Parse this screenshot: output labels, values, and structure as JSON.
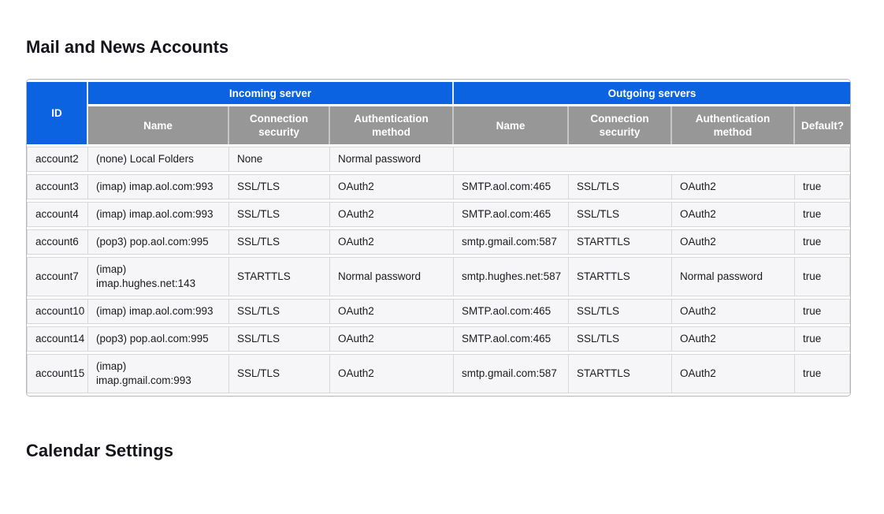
{
  "page": {
    "accounts_heading": "Mail and News Accounts",
    "calendar_heading": "Calendar Settings"
  },
  "colors": {
    "header_blue": "#0b63e1",
    "header_gray": "#979797",
    "row_bg": "#f6f6f8",
    "cell_border": "#d8d8da",
    "outer_border": "#b6b6b8",
    "heading_text": "#15141a"
  },
  "accounts_table": {
    "col_id": "ID",
    "group_incoming": "Incoming server",
    "group_outgoing": "Outgoing servers",
    "sub_headers": {
      "name": "Name",
      "connection_security": "Connection security",
      "authentication_method": "Authentication method",
      "default": "Default?"
    },
    "rows": [
      {
        "id": "account2",
        "in_name": "(none) Local Folders",
        "in_conn": "None",
        "in_auth": "Normal password",
        "out_name": null,
        "out_conn": null,
        "out_auth": null,
        "out_default": null
      },
      {
        "id": "account3",
        "in_name": "(imap) imap.aol.com:993",
        "in_conn": "SSL/TLS",
        "in_auth": "OAuth2",
        "out_name": "SMTP.aol.com:465",
        "out_conn": "SSL/TLS",
        "out_auth": "OAuth2",
        "out_default": "true"
      },
      {
        "id": "account4",
        "in_name": "(imap) imap.aol.com:993",
        "in_conn": "SSL/TLS",
        "in_auth": "OAuth2",
        "out_name": "SMTP.aol.com:465",
        "out_conn": "SSL/TLS",
        "out_auth": "OAuth2",
        "out_default": "true"
      },
      {
        "id": "account6",
        "in_name": "(pop3) pop.aol.com:995",
        "in_conn": "SSL/TLS",
        "in_auth": "OAuth2",
        "out_name": "smtp.gmail.com:587",
        "out_conn": "STARTTLS",
        "out_auth": "OAuth2",
        "out_default": "true"
      },
      {
        "id": "account7",
        "in_name": "(imap)\nimap.hughes.net:143",
        "in_conn": "STARTTLS",
        "in_auth": "Normal password",
        "out_name": "smtp.hughes.net:587",
        "out_conn": "STARTTLS",
        "out_auth": "Normal password",
        "out_default": "true"
      },
      {
        "id": "account10",
        "in_name": "(imap) imap.aol.com:993",
        "in_conn": "SSL/TLS",
        "in_auth": "OAuth2",
        "out_name": "SMTP.aol.com:465",
        "out_conn": "SSL/TLS",
        "out_auth": "OAuth2",
        "out_default": "true"
      },
      {
        "id": "account14",
        "in_name": "(pop3) pop.aol.com:995",
        "in_conn": "SSL/TLS",
        "in_auth": "OAuth2",
        "out_name": "SMTP.aol.com:465",
        "out_conn": "SSL/TLS",
        "out_auth": "OAuth2",
        "out_default": "true"
      },
      {
        "id": "account15",
        "in_name": "(imap)\nimap.gmail.com:993",
        "in_conn": "SSL/TLS",
        "in_auth": "OAuth2",
        "out_name": "smtp.gmail.com:587",
        "out_conn": "STARTTLS",
        "out_auth": "OAuth2",
        "out_default": "true"
      }
    ]
  }
}
